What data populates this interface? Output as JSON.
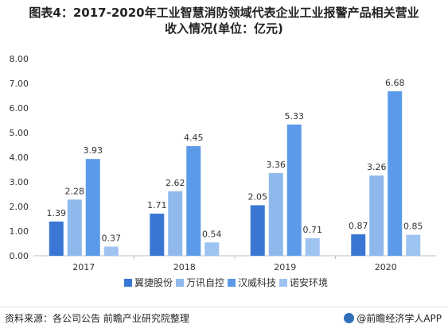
{
  "title_line1": "图表4：2017-2020年工业智慧消防领域代表企业工业报警产品相关营业",
  "title_line2": "收入情况(单位：亿元)",
  "footer": {
    "source": "资料来源：各公司公告 前瞻产业研究院整理",
    "brand": "@前瞻经济学人APP"
  },
  "chart_data": {
    "type": "bar",
    "categories": [
      "2017",
      "2018",
      "2019",
      "2020"
    ],
    "series": [
      {
        "name": "翼捷股份",
        "color": "#3a76d4",
        "values": [
          1.39,
          1.71,
          2.05,
          0.87
        ]
      },
      {
        "name": "万讯自控",
        "color": "#8fb9ec",
        "values": [
          2.28,
          2.62,
          3.36,
          3.26
        ]
      },
      {
        "name": "汉威科技",
        "color": "#5b9ae8",
        "values": [
          3.93,
          4.45,
          5.33,
          6.68
        ]
      },
      {
        "name": "诺安环境",
        "color": "#9dc3f0",
        "values": [
          0.37,
          0.54,
          0.71,
          0.85
        ]
      }
    ],
    "value_labels": [
      [
        "1.39",
        "1.71",
        "2.05",
        "0.87"
      ],
      [
        "2.28",
        "2.62",
        "3.36",
        "3.26"
      ],
      [
        "3.93",
        "4.45",
        "5.33",
        "6.68"
      ],
      [
        "0.37",
        "0.54",
        "0.71",
        "0.85"
      ]
    ],
    "yticks": [
      "0.00",
      "1.00",
      "2.00",
      "3.00",
      "4.00",
      "5.00",
      "6.00",
      "7.00",
      "8.00"
    ],
    "ylim": [
      0,
      8
    ],
    "grid": false,
    "legend_position": "bottom"
  }
}
